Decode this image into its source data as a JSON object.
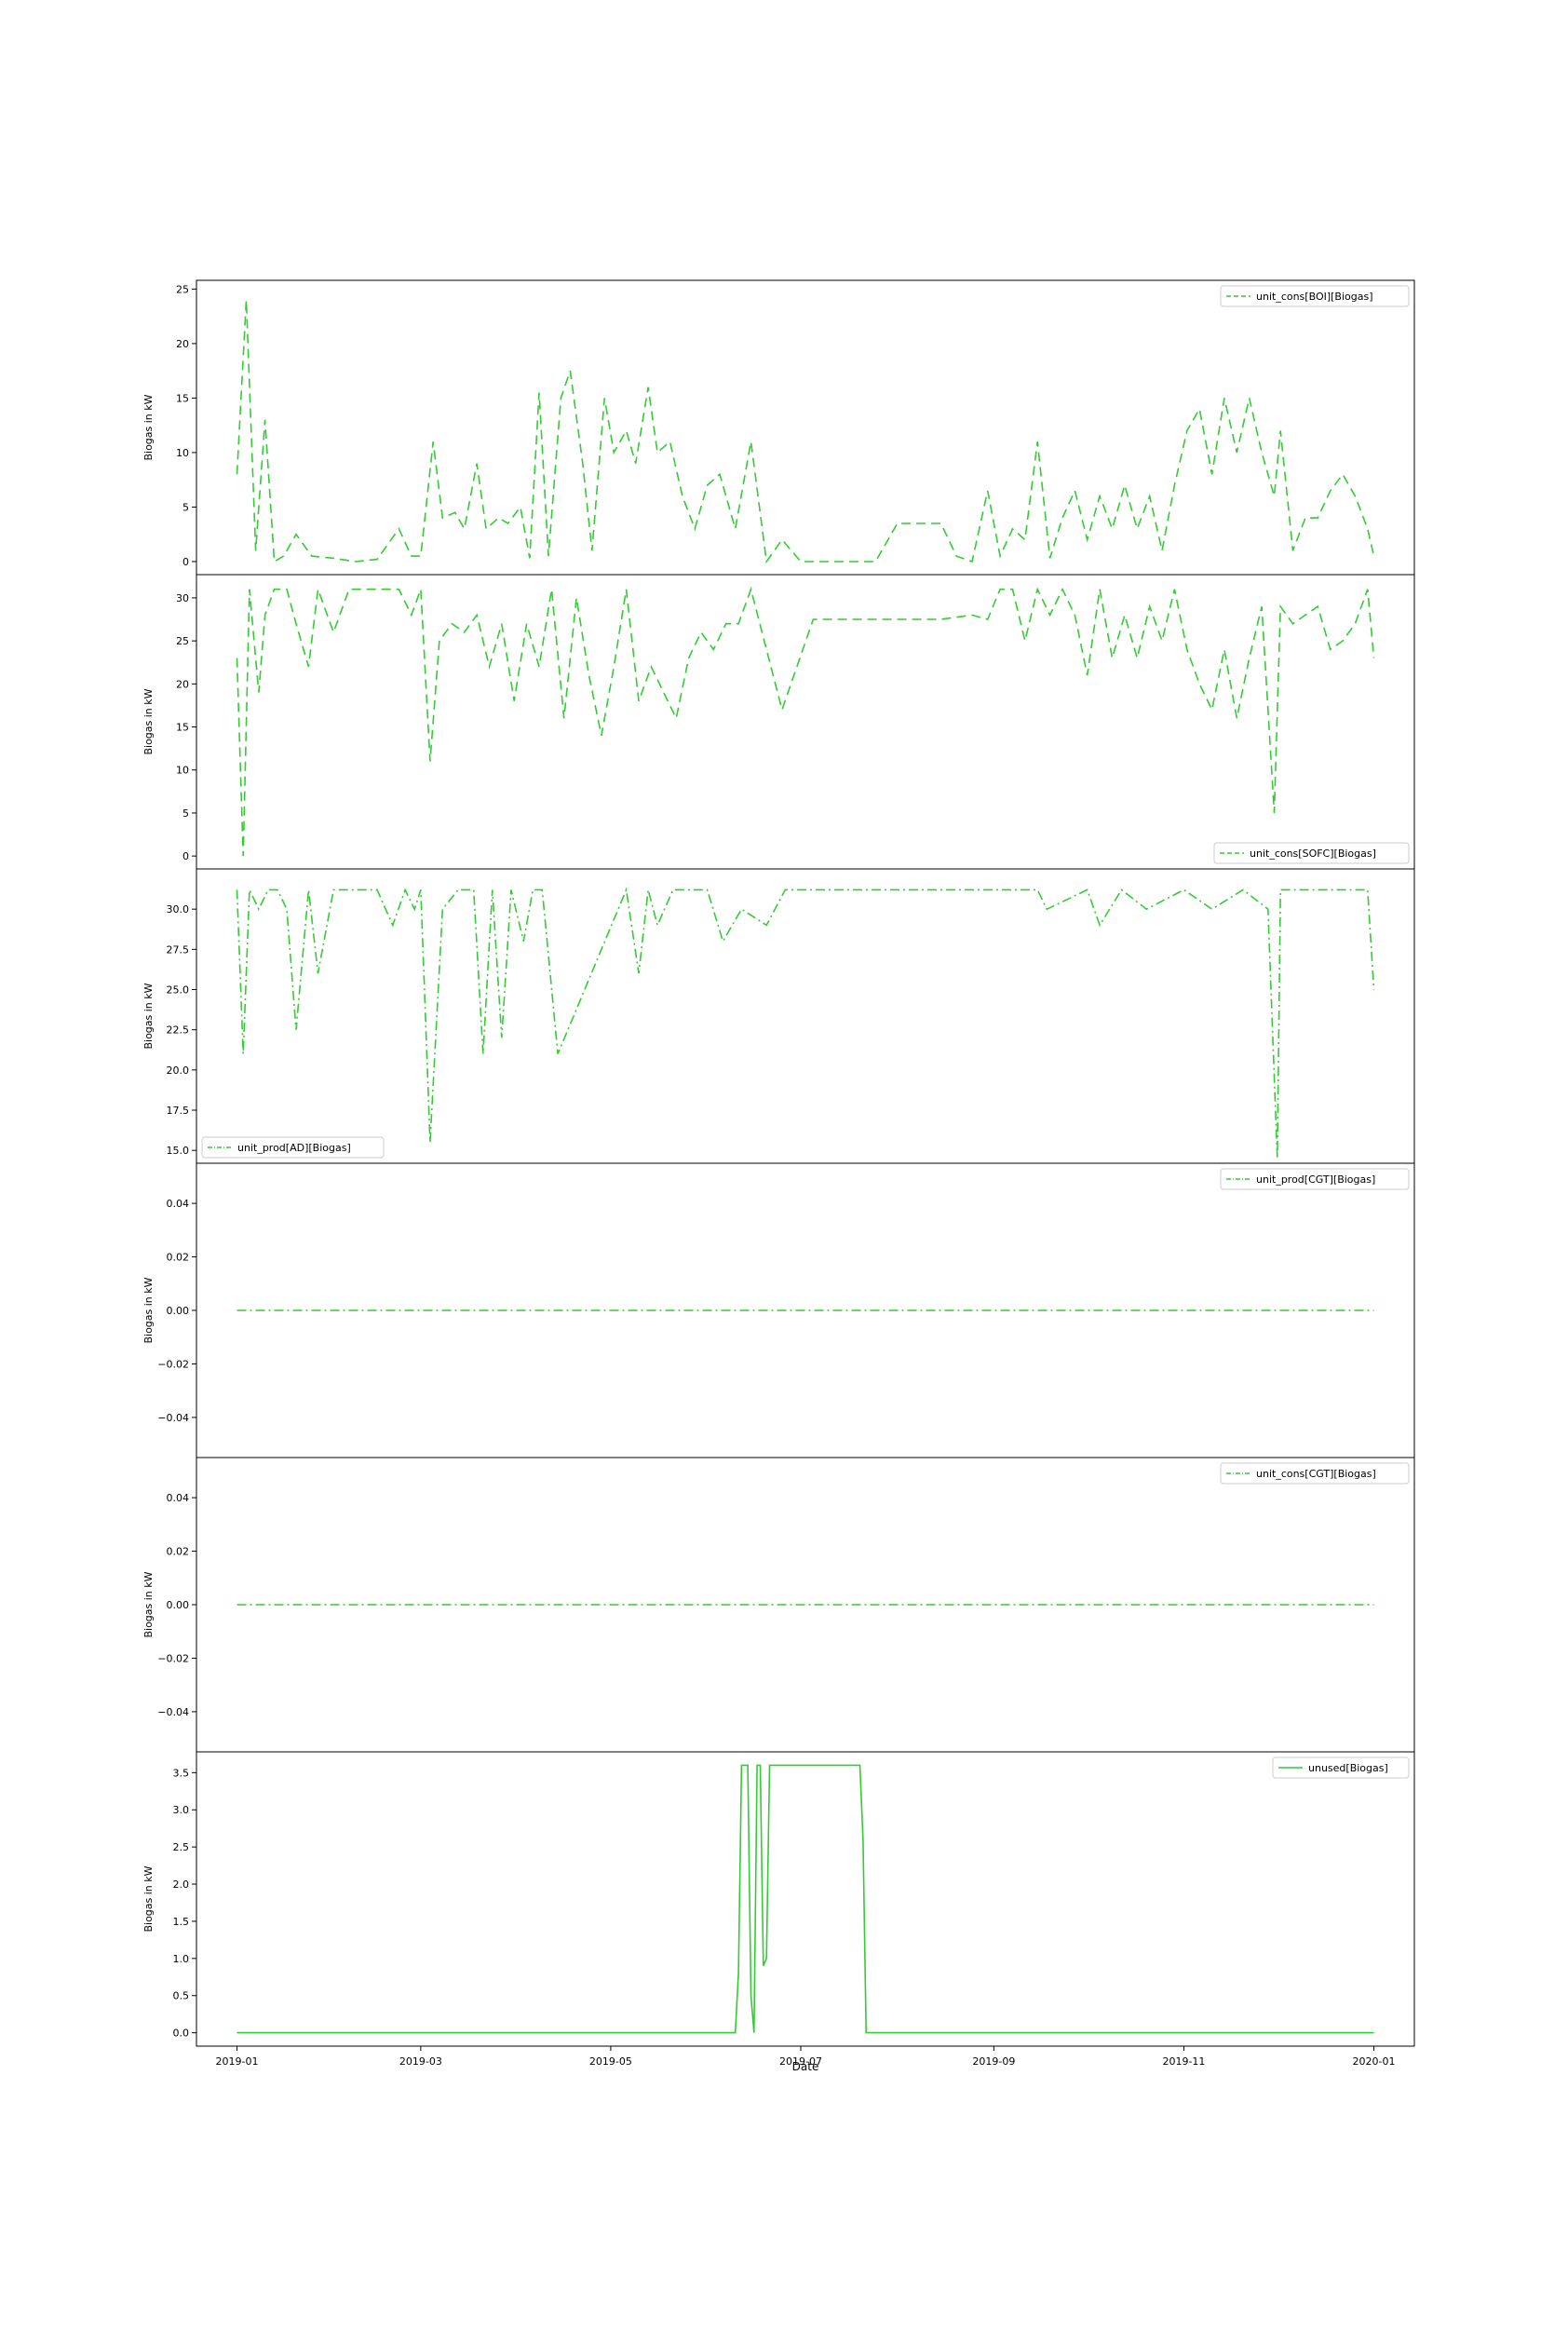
{
  "figure": {
    "xlabel": "Date",
    "ylabel": "Biogas in kW",
    "x_ticks": [
      "2019-01",
      "2019-03",
      "2019-05",
      "2019-07",
      "2019-09",
      "2019-11",
      "2020-01"
    ],
    "series_color": "#33cc33"
  },
  "chart_data": [
    {
      "type": "line",
      "legend": "unit_cons[BOI][Biogas]",
      "legend_position": "upper right",
      "line_style": "dashed",
      "ylabel": "Biogas in kW",
      "ylim": [
        -1.2,
        25.8
      ],
      "y_ticks": [
        0,
        5,
        10,
        15,
        20,
        25
      ],
      "x": [
        "2019-01-01",
        "2019-01-04",
        "2019-01-07",
        "2019-01-10",
        "2019-01-13",
        "2019-01-16",
        "2019-01-20",
        "2019-01-25",
        "2019-02-01",
        "2019-02-08",
        "2019-02-15",
        "2019-02-22",
        "2019-02-26",
        "2019-03-01",
        "2019-03-05",
        "2019-03-08",
        "2019-03-12",
        "2019-03-15",
        "2019-03-19",
        "2019-03-22",
        "2019-03-26",
        "2019-03-29",
        "2019-04-02",
        "2019-04-05",
        "2019-04-08",
        "2019-04-11",
        "2019-04-15",
        "2019-04-18",
        "2019-04-22",
        "2019-04-25",
        "2019-04-29",
        "2019-05-02",
        "2019-05-06",
        "2019-05-09",
        "2019-05-13",
        "2019-05-16",
        "2019-05-20",
        "2019-05-24",
        "2019-05-28",
        "2019-06-01",
        "2019-06-05",
        "2019-06-10",
        "2019-06-15",
        "2019-06-20",
        "2019-06-25",
        "2019-07-01",
        "2019-07-10",
        "2019-07-20",
        "2019-07-25",
        "2019-08-01",
        "2019-08-10",
        "2019-08-15",
        "2019-08-20",
        "2019-08-25",
        "2019-08-30",
        "2019-09-03",
        "2019-09-07",
        "2019-09-11",
        "2019-09-15",
        "2019-09-19",
        "2019-09-23",
        "2019-09-27",
        "2019-10-01",
        "2019-10-05",
        "2019-10-09",
        "2019-10-13",
        "2019-10-17",
        "2019-10-21",
        "2019-10-25",
        "2019-10-29",
        "2019-11-02",
        "2019-11-06",
        "2019-11-10",
        "2019-11-14",
        "2019-11-18",
        "2019-11-22",
        "2019-11-26",
        "2019-11-30",
        "2019-12-02",
        "2019-12-06",
        "2019-12-10",
        "2019-12-14",
        "2019-12-18",
        "2019-12-22",
        "2019-12-26",
        "2019-12-30",
        "2020-01-01"
      ],
      "y": [
        8,
        24,
        1,
        13,
        0,
        0.5,
        2.5,
        0.5,
        0.3,
        0,
        0.2,
        3,
        0.5,
        0.5,
        11,
        4,
        4.5,
        3,
        9,
        3,
        4,
        3.5,
        5,
        0.3,
        15.5,
        0.5,
        15,
        17.5,
        9,
        1,
        15,
        10,
        12,
        9,
        16,
        10,
        11,
        6,
        3,
        7,
        8,
        3,
        11,
        0,
        2,
        0,
        0,
        0,
        0,
        3.5,
        3.5,
        3.5,
        0.5,
        0,
        6.5,
        0.5,
        3,
        2,
        11,
        0.3,
        4,
        6.5,
        2,
        6,
        3,
        7,
        3,
        6,
        1,
        7,
        12,
        14,
        8,
        15,
        10,
        15,
        10,
        6,
        12,
        1,
        4,
        4,
        6.5,
        8,
        6,
        3,
        0.5
      ]
    },
    {
      "type": "line",
      "legend": "unit_cons[SOFC][Biogas]",
      "legend_position": "lower right",
      "line_style": "dashed",
      "ylabel": "Biogas in kW",
      "ylim": [
        -1.5,
        32.7
      ],
      "y_ticks": [
        0,
        5,
        10,
        15,
        20,
        25,
        30
      ],
      "x": [
        "2019-01-01",
        "2019-01-03",
        "2019-01-05",
        "2019-01-08",
        "2019-01-10",
        "2019-01-13",
        "2019-01-17",
        "2019-01-20",
        "2019-01-24",
        "2019-01-27",
        "2019-02-01",
        "2019-02-06",
        "2019-02-10",
        "2019-02-16",
        "2019-02-22",
        "2019-02-26",
        "2019-03-01",
        "2019-03-04",
        "2019-03-07",
        "2019-03-11",
        "2019-03-15",
        "2019-03-19",
        "2019-03-23",
        "2019-03-27",
        "2019-03-31",
        "2019-04-04",
        "2019-04-08",
        "2019-04-12",
        "2019-04-16",
        "2019-04-20",
        "2019-04-24",
        "2019-04-28",
        "2019-05-02",
        "2019-05-06",
        "2019-05-10",
        "2019-05-14",
        "2019-05-18",
        "2019-05-22",
        "2019-05-26",
        "2019-05-30",
        "2019-06-03",
        "2019-06-07",
        "2019-06-11",
        "2019-06-15",
        "2019-06-25",
        "2019-07-05",
        "2019-07-20",
        "2019-08-05",
        "2019-08-15",
        "2019-08-25",
        "2019-08-30",
        "2019-09-03",
        "2019-09-07",
        "2019-09-11",
        "2019-09-15",
        "2019-09-19",
        "2019-09-23",
        "2019-09-27",
        "2019-10-01",
        "2019-10-05",
        "2019-10-09",
        "2019-10-13",
        "2019-10-17",
        "2019-10-21",
        "2019-10-25",
        "2019-10-29",
        "2019-11-02",
        "2019-11-06",
        "2019-11-10",
        "2019-11-14",
        "2019-11-18",
        "2019-11-22",
        "2019-11-26",
        "2019-11-30",
        "2019-12-02",
        "2019-12-06",
        "2019-12-10",
        "2019-12-14",
        "2019-12-18",
        "2019-12-22",
        "2019-12-26",
        "2019-12-30",
        "2020-01-01"
      ],
      "y": [
        23,
        0,
        31,
        19,
        28,
        31,
        31,
        27,
        22,
        31,
        26,
        31,
        31,
        31,
        31,
        28,
        31,
        11,
        25,
        27,
        26,
        28,
        22,
        27,
        18,
        27,
        22,
        31,
        16,
        30,
        21,
        14,
        22,
        31,
        18,
        22,
        19,
        16,
        23,
        26,
        24,
        27,
        27,
        31,
        17,
        27.5,
        27.5,
        27.5,
        27.5,
        28,
        27.5,
        31,
        31,
        25,
        31,
        28,
        31,
        28,
        21,
        31,
        23,
        28,
        23,
        29,
        25,
        31,
        24,
        20,
        17,
        24,
        16,
        23,
        29,
        5,
        29,
        27,
        28,
        29,
        24,
        25,
        27,
        31,
        23
      ]
    },
    {
      "type": "line",
      "legend": "unit_prod[AD][Biogas]",
      "legend_position": "lower left",
      "line_style": "dashdot",
      "ylabel": "Biogas in kW",
      "ylim": [
        14.2,
        32.5
      ],
      "y_ticks": [
        15.0,
        17.5,
        20.0,
        22.5,
        25.0,
        27.5,
        30.0
      ],
      "x": [
        "2019-01-01",
        "2019-01-03",
        "2019-01-05",
        "2019-01-08",
        "2019-01-11",
        "2019-01-14",
        "2019-01-17",
        "2019-01-20",
        "2019-01-24",
        "2019-01-27",
        "2019-02-01",
        "2019-02-08",
        "2019-02-15",
        "2019-02-20",
        "2019-02-24",
        "2019-02-27",
        "2019-03-01",
        "2019-03-04",
        "2019-03-08",
        "2019-03-13",
        "2019-03-18",
        "2019-03-21",
        "2019-03-24",
        "2019-03-27",
        "2019-03-30",
        "2019-04-03",
        "2019-04-06",
        "2019-04-09",
        "2019-04-14",
        "2019-05-06",
        "2019-05-10",
        "2019-05-13",
        "2019-05-16",
        "2019-05-21",
        "2019-06-01",
        "2019-06-06",
        "2019-06-12",
        "2019-06-20",
        "2019-06-26",
        "2019-07-06",
        "2019-07-20",
        "2019-08-05",
        "2019-08-25",
        "2019-09-01",
        "2019-09-15",
        "2019-09-18",
        "2019-10-01",
        "2019-10-05",
        "2019-10-12",
        "2019-10-20",
        "2019-11-01",
        "2019-11-10",
        "2019-11-20",
        "2019-11-28",
        "2019-12-01",
        "2019-12-02",
        "2019-12-05",
        "2019-12-20",
        "2019-12-30",
        "2020-01-01"
      ],
      "y": [
        31.2,
        21,
        31.2,
        30,
        31.2,
        31.2,
        30,
        22.5,
        31.2,
        26,
        31.2,
        31.2,
        31.2,
        29,
        31.2,
        30,
        31.2,
        15.5,
        30,
        31.2,
        31.2,
        21,
        31.2,
        22,
        31.2,
        28,
        31.2,
        31.2,
        21,
        31.2,
        26,
        31.2,
        29,
        31.2,
        31.2,
        28,
        30,
        29,
        31.2,
        31.2,
        31.2,
        31.2,
        31.2,
        31.2,
        31.2,
        30,
        31.2,
        29,
        31.2,
        30,
        31.2,
        30,
        31.2,
        30,
        14.5,
        31.2,
        31.2,
        31.2,
        31.2,
        25
      ]
    },
    {
      "type": "line",
      "legend": "unit_prod[CGT][Biogas]",
      "legend_position": "upper right",
      "line_style": "dashdot",
      "ylabel": "Biogas in kW",
      "ylim": [
        -0.055,
        0.055
      ],
      "y_ticks": [
        "−0.04",
        "−0.02",
        "0.00",
        "0.02",
        "0.04"
      ],
      "x": [
        "2019-01-01",
        "2020-01-01"
      ],
      "y": [
        0,
        0
      ]
    },
    {
      "type": "line",
      "legend": "unit_cons[CGT][Biogas]",
      "legend_position": "upper right",
      "line_style": "dashdot",
      "ylabel": "Biogas in kW",
      "ylim": [
        -0.055,
        0.055
      ],
      "y_ticks": [
        "−0.04",
        "−0.02",
        "0.00",
        "0.02",
        "0.04"
      ],
      "x": [
        "2019-01-01",
        "2020-01-01"
      ],
      "y": [
        0,
        0
      ]
    },
    {
      "type": "line",
      "legend": "unused[Biogas]",
      "legend_position": "upper right",
      "line_style": "solid",
      "ylabel": "Biogas in kW",
      "xlabel": "Date",
      "ylim": [
        -0.18,
        3.78
      ],
      "y_ticks": [
        0.0,
        0.5,
        1.0,
        1.5,
        2.0,
        2.5,
        3.0,
        3.5
      ],
      "x": [
        "2019-01-01",
        "2019-06-10",
        "2019-06-11",
        "2019-06-12",
        "2019-06-13",
        "2019-06-14",
        "2019-06-15",
        "2019-06-16",
        "2019-06-17",
        "2019-06-18",
        "2019-06-19",
        "2019-06-20",
        "2019-06-21",
        "2019-06-22",
        "2019-06-23",
        "2019-06-24",
        "2019-06-25",
        "2019-07-01",
        "2019-07-10",
        "2019-07-20",
        "2019-07-21",
        "2019-07-22",
        "2020-01-01"
      ],
      "y": [
        0,
        0,
        0.8,
        3.6,
        3.6,
        3.6,
        0.5,
        0,
        3.6,
        3.6,
        0.9,
        1.0,
        3.6,
        3.6,
        3.6,
        3.6,
        3.6,
        3.6,
        3.6,
        3.6,
        2.6,
        0,
        0
      ]
    }
  ]
}
